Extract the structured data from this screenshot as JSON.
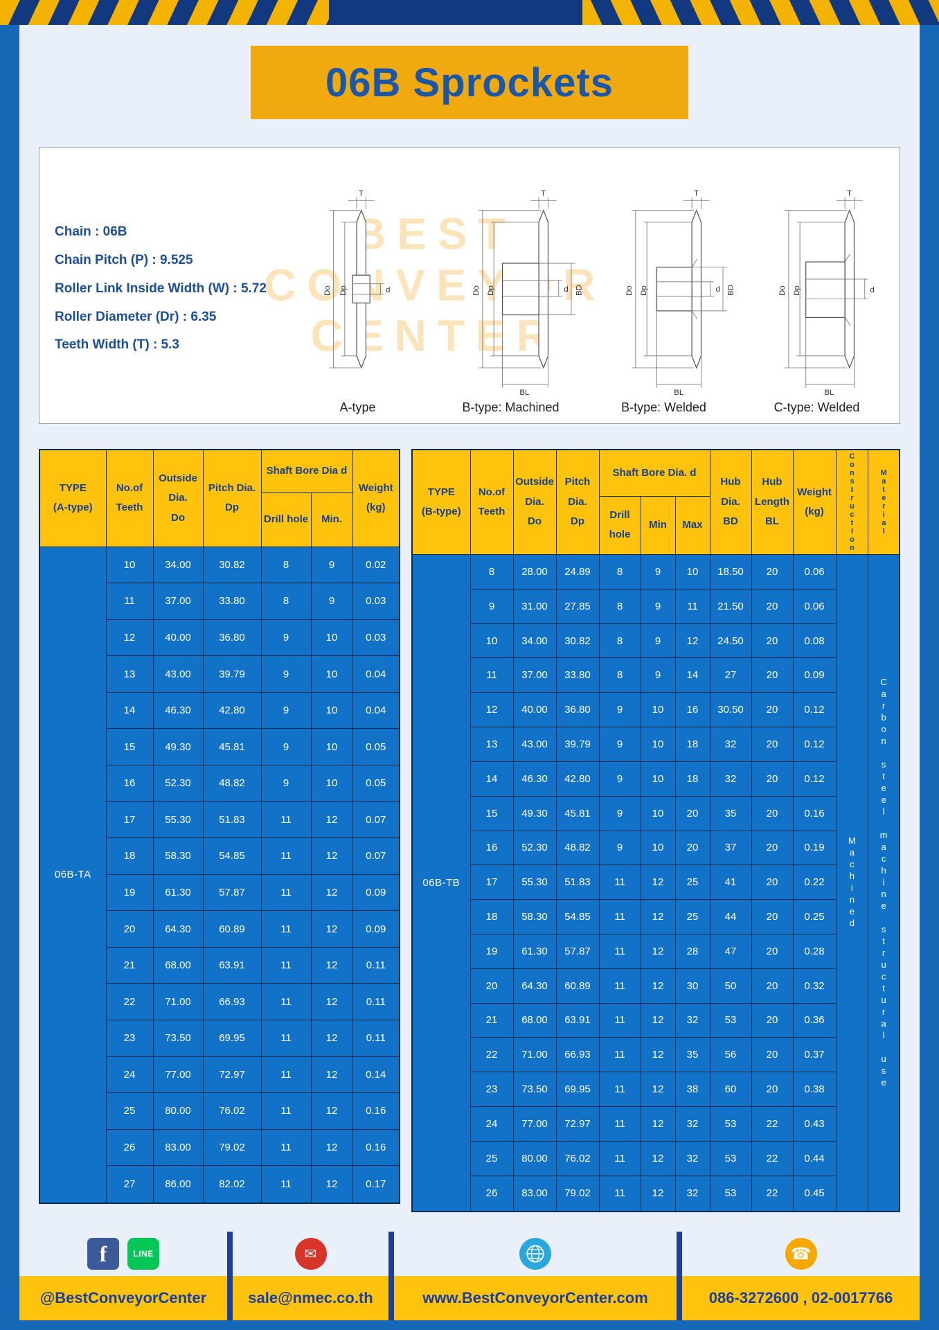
{
  "colors": {
    "frame_blue": "#1568B6",
    "navy": "#12387F",
    "banner_gold": "#F0A90F",
    "header_yellow": "#FFC30E",
    "table_blue": "#1272C8",
    "title_text_blue": "#1A57A8",
    "footer_text_blue": "#1B3F9E"
  },
  "title": "06B Sprockets",
  "specs": {
    "lines": [
      "Chain : 06B",
      "Chain Pitch (P) : 9.525",
      "Roller Link Inside Width (W) : 5.72",
      "Roller Diameter (Dr) : 6.35",
      "Teeth Width (T) : 5.3"
    ]
  },
  "watermark": "BEST\nCONVEYOR\nCENTER",
  "diagrams": {
    "labels": [
      "A-type",
      "B-type: Machined",
      "B-type: Welded",
      "C-type: Welded"
    ],
    "dims": {
      "T": "T",
      "Do": "Do",
      "Dp": "Dp",
      "d": "d",
      "BD": "BD",
      "BL": "BL"
    }
  },
  "table_a": {
    "header": {
      "type": "TYPE\n(A-type)",
      "teeth": "No.of\nTeeth",
      "outside": "Outside\nDia.\nDo",
      "pitch": "Pitch Dia.\nDp",
      "bore_group": "Shaft Bore Dia d",
      "drill": "Drill hole",
      "min": "Min.",
      "weight": "Weight\n(kg)"
    },
    "type_label": "06B-TA",
    "rows": [
      [
        "10",
        "34.00",
        "30.82",
        "8",
        "9",
        "0.02"
      ],
      [
        "11",
        "37.00",
        "33.80",
        "8",
        "9",
        "0.03"
      ],
      [
        "12",
        "40.00",
        "36.80",
        "9",
        "10",
        "0.03"
      ],
      [
        "13",
        "43.00",
        "39.79",
        "9",
        "10",
        "0.04"
      ],
      [
        "14",
        "46.30",
        "42.80",
        "9",
        "10",
        "0.04"
      ],
      [
        "15",
        "49.30",
        "45.81",
        "9",
        "10",
        "0.05"
      ],
      [
        "16",
        "52.30",
        "48.82",
        "9",
        "10",
        "0.05"
      ],
      [
        "17",
        "55.30",
        "51.83",
        "11",
        "12",
        "0.07"
      ],
      [
        "18",
        "58.30",
        "54.85",
        "11",
        "12",
        "0.07"
      ],
      [
        "19",
        "61.30",
        "57.87",
        "11",
        "12",
        "0.09"
      ],
      [
        "20",
        "64.30",
        "60.89",
        "11",
        "12",
        "0.09"
      ],
      [
        "21",
        "68.00",
        "63.91",
        "11",
        "12",
        "0.11"
      ],
      [
        "22",
        "71.00",
        "66.93",
        "11",
        "12",
        "0.11"
      ],
      [
        "23",
        "73.50",
        "69.95",
        "11",
        "12",
        "0.11"
      ],
      [
        "24",
        "77.00",
        "72.97",
        "11",
        "12",
        "0.14"
      ],
      [
        "25",
        "80.00",
        "76.02",
        "11",
        "12",
        "0.16"
      ],
      [
        "26",
        "83.00",
        "79.02",
        "11",
        "12",
        "0.16"
      ],
      [
        "27",
        "86.00",
        "82.02",
        "11",
        "12",
        "0.17"
      ]
    ]
  },
  "table_b": {
    "header": {
      "type": "TYPE\n(B-type)",
      "teeth": "No.of\nTeeth",
      "outside": "Outside\nDia.\nDo",
      "pitch": "Pitch\nDia.\nDp",
      "bore_group": "Shaft Bore Dia. d",
      "drill": "Drill hole",
      "min": "Min",
      "max": "Max",
      "hub_dia": "Hub\nDia.\nBD",
      "hub_len": "Hub\nLength\nBL",
      "weight": "Weight\n(kg)",
      "construction": "Construction",
      "material": "Material"
    },
    "type_label": "06B-TB",
    "construction": "Machined",
    "material": "Carbon steel machine structural use",
    "rows": [
      [
        "8",
        "28.00",
        "24.89",
        "8",
        "9",
        "10",
        "18.50",
        "20",
        "0.06"
      ],
      [
        "9",
        "31.00",
        "27.85",
        "8",
        "9",
        "11",
        "21.50",
        "20",
        "0.06"
      ],
      [
        "10",
        "34.00",
        "30.82",
        "8",
        "9",
        "12",
        "24.50",
        "20",
        "0.08"
      ],
      [
        "11",
        "37.00",
        "33.80",
        "8",
        "9",
        "14",
        "27",
        "20",
        "0.09"
      ],
      [
        "12",
        "40.00",
        "36.80",
        "9",
        "10",
        "16",
        "30.50",
        "20",
        "0.12"
      ],
      [
        "13",
        "43.00",
        "39.79",
        "9",
        "10",
        "18",
        "32",
        "20",
        "0.12"
      ],
      [
        "14",
        "46.30",
        "42.80",
        "9",
        "10",
        "18",
        "32",
        "20",
        "0.12"
      ],
      [
        "15",
        "49.30",
        "45.81",
        "9",
        "10",
        "20",
        "35",
        "20",
        "0.16"
      ],
      [
        "16",
        "52.30",
        "48.82",
        "9",
        "10",
        "20",
        "37",
        "20",
        "0.19"
      ],
      [
        "17",
        "55.30",
        "51.83",
        "11",
        "12",
        "25",
        "41",
        "20",
        "0.22"
      ],
      [
        "18",
        "58.30",
        "54.85",
        "11",
        "12",
        "25",
        "44",
        "20",
        "0.25"
      ],
      [
        "19",
        "61.30",
        "57.87",
        "11",
        "12",
        "28",
        "47",
        "20",
        "0.28"
      ],
      [
        "20",
        "64.30",
        "60.89",
        "11",
        "12",
        "30",
        "50",
        "20",
        "0.32"
      ],
      [
        "21",
        "68.00",
        "63.91",
        "11",
        "12",
        "32",
        "53",
        "20",
        "0.36"
      ],
      [
        "22",
        "71.00",
        "66.93",
        "11",
        "12",
        "35",
        "56",
        "20",
        "0.37"
      ],
      [
        "23",
        "73.50",
        "69.95",
        "11",
        "12",
        "38",
        "60",
        "20",
        "0.38"
      ],
      [
        "24",
        "77.00",
        "72.97",
        "11",
        "12",
        "32",
        "53",
        "22",
        "0.43"
      ],
      [
        "25",
        "80.00",
        "76.02",
        "11",
        "12",
        "32",
        "53",
        "22",
        "0.44"
      ],
      [
        "26",
        "83.00",
        "79.02",
        "11",
        "12",
        "32",
        "53",
        "22",
        "0.45"
      ]
    ]
  },
  "footer": {
    "facebook_letter": "f",
    "line_label": "LINE",
    "sections": [
      {
        "text": "@BestConveyorCenter"
      },
      {
        "text": "sale@nmec.co.th"
      },
      {
        "text": "www.BestConveyorCenter.com"
      },
      {
        "text": "086-3272600 , 02-0017766"
      }
    ]
  }
}
